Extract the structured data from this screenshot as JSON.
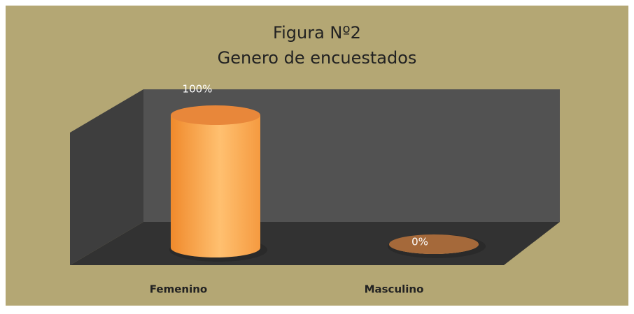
{
  "chart_data": {
    "type": "bar",
    "title": "Figura Nº2",
    "subtitle": "Genero de encuestados",
    "categories": [
      "Femenino",
      "Masculino"
    ],
    "values": [
      100,
      0
    ],
    "value_labels": [
      "100%",
      "0%"
    ],
    "color": "#f79646",
    "ylim": [
      0,
      100
    ]
  }
}
